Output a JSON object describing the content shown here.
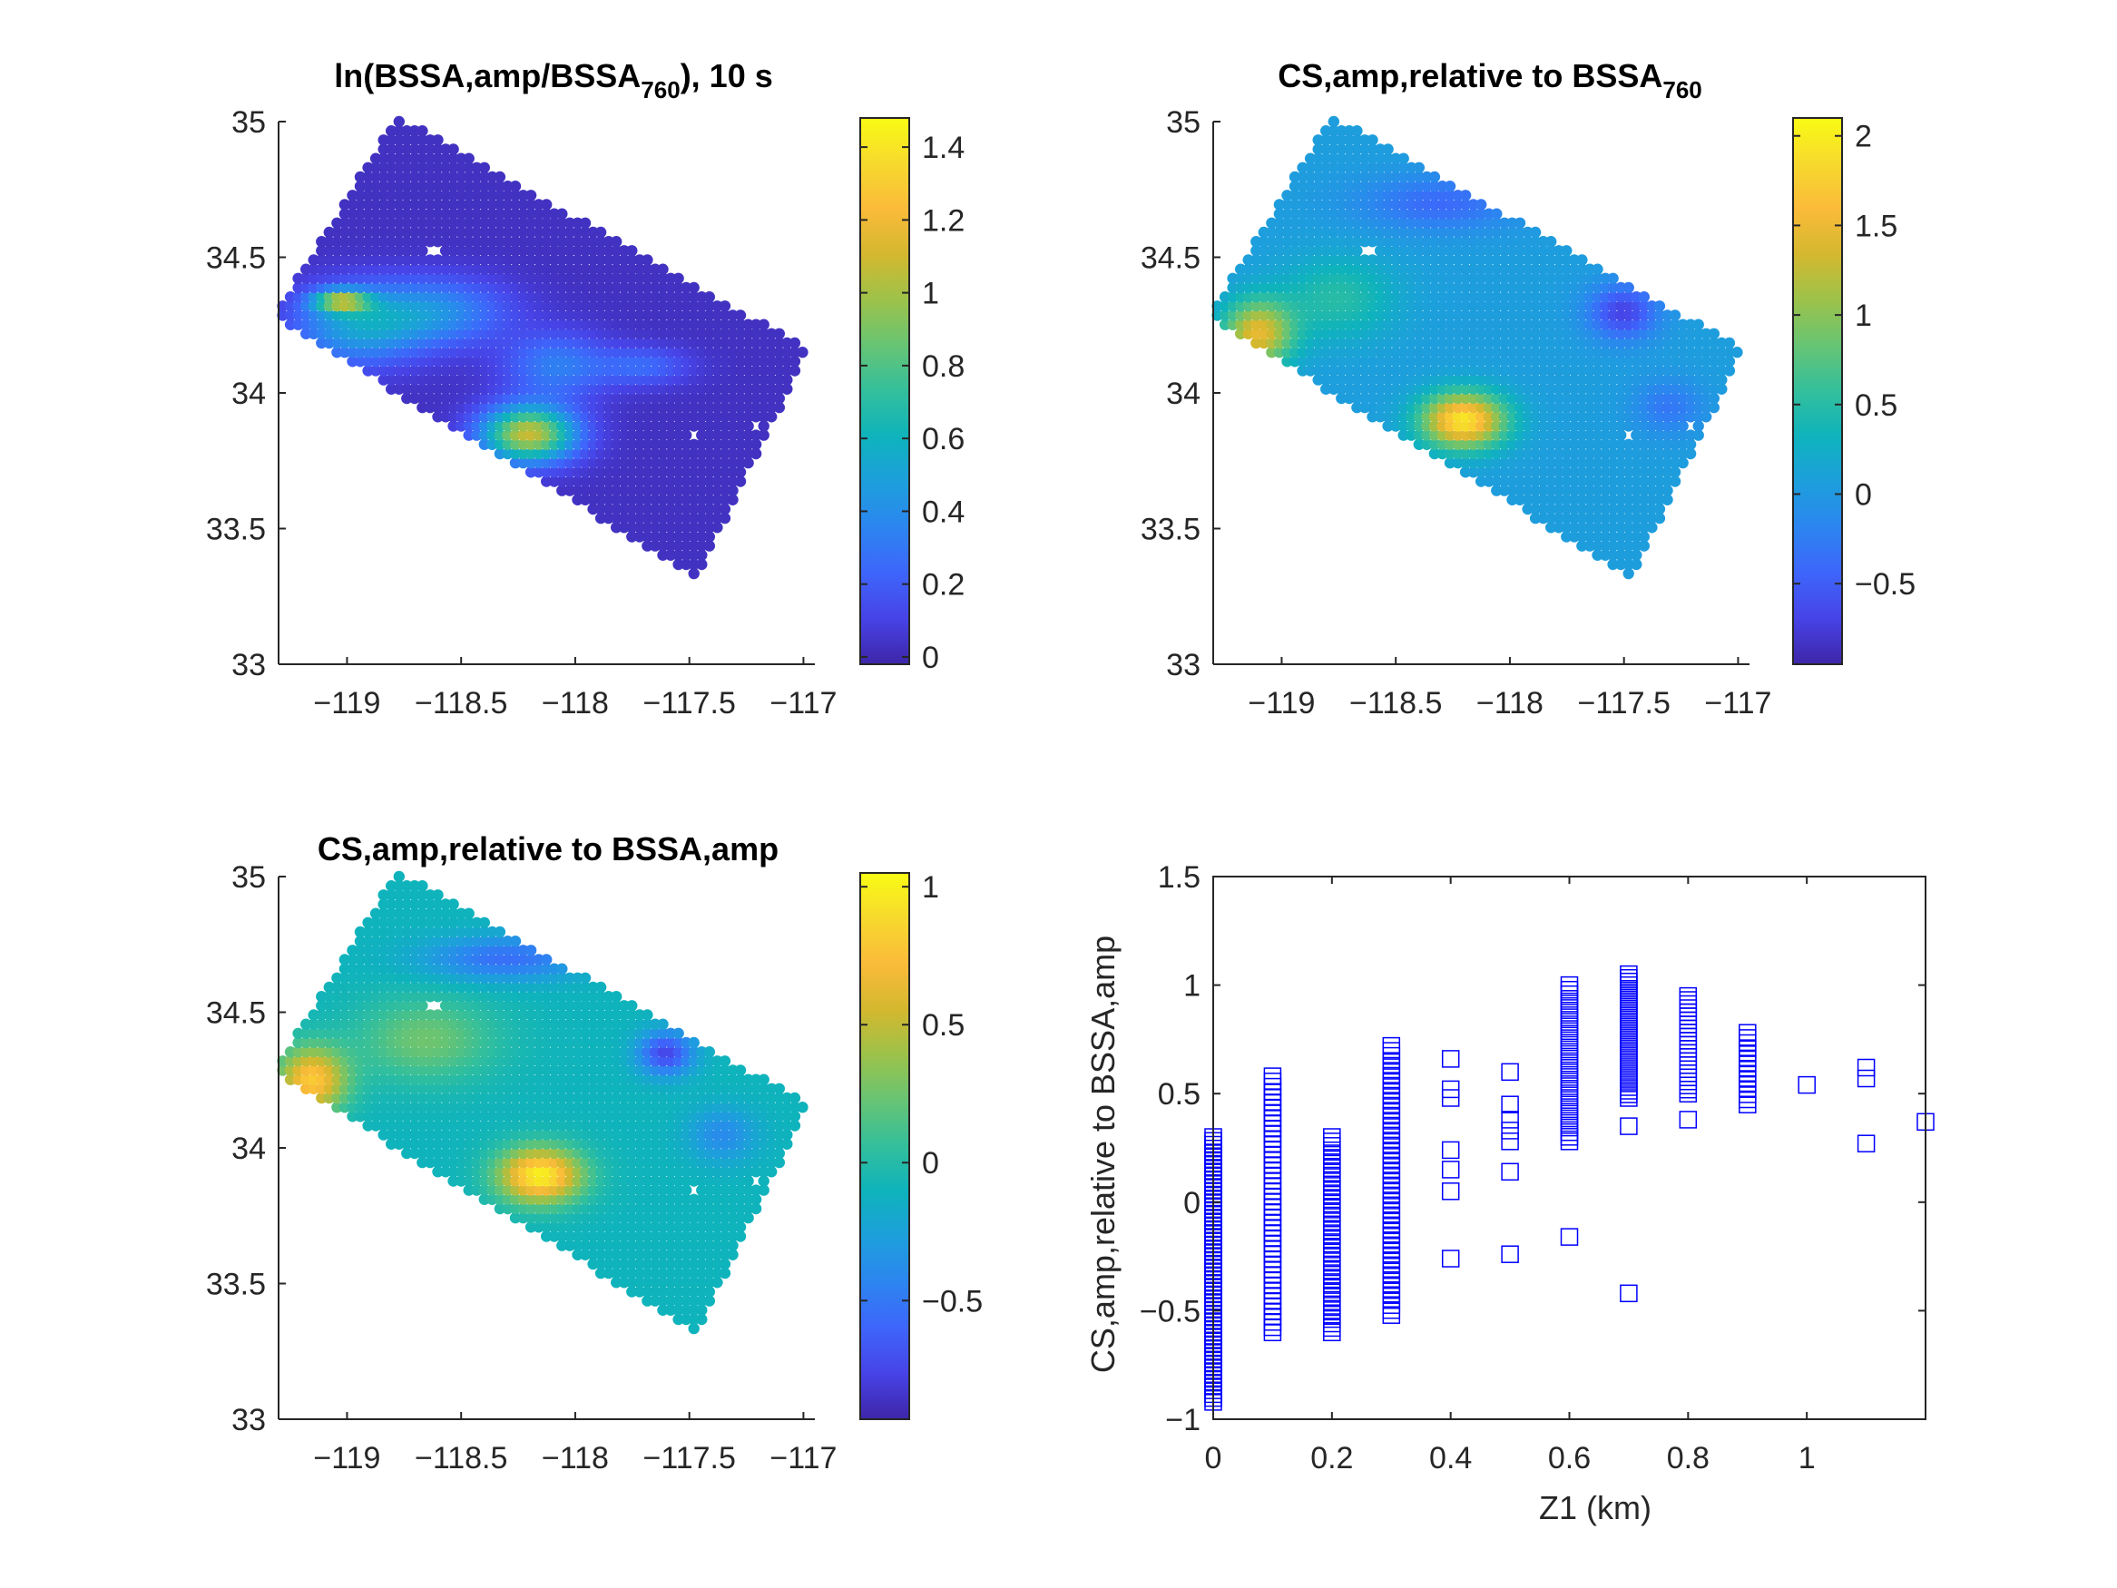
{
  "colormap": [
    "#3e26a8",
    "#4743e7",
    "#3e65fb",
    "#2c85f0",
    "#1d9fdc",
    "#0eb3bc",
    "#33bf9c",
    "#67c474",
    "#9cc24a",
    "#d4b82e",
    "#fabb3a",
    "#f7d92d",
    "#f9fb15"
  ],
  "region": {
    "corners": [
      [
        -118.78,
        35.02
      ],
      [
        -116.98,
        34.16
      ],
      [
        -117.47,
        33.32
      ],
      [
        -119.32,
        34.28
      ]
    ],
    "holes": [
      [
        -118.62,
        34.53
      ],
      [
        -117.48,
        33.85
      ],
      [
        -117.22,
        33.88
      ]
    ]
  },
  "chart_data": [
    {
      "type": "heatmap",
      "title": "ln(BSSA,amp/BSSA",
      "title_sub": "760",
      "title_post": "), 10 s",
      "xlabel": "",
      "ylabel": "",
      "xlim": [
        -119.3,
        -116.95
      ],
      "ylim": [
        33,
        35
      ],
      "xticks": [
        -119,
        -118.5,
        -118,
        -117.5,
        -117
      ],
      "yticks": [
        33,
        33.5,
        34,
        34.5,
        35
      ],
      "clim": [
        -0.02,
        1.48
      ],
      "cticks": [
        0,
        0.2,
        0.4,
        0.6,
        0.8,
        1,
        1.2,
        1.4
      ],
      "base": 0.03,
      "blobs": [
        {
          "x": -118.95,
          "y": 34.25,
          "sx": 0.28,
          "sy": 0.14,
          "a": 0.45
        },
        {
          "x": -118.6,
          "y": 34.3,
          "sx": 0.3,
          "sy": 0.12,
          "a": 0.35
        },
        {
          "x": -118.2,
          "y": 33.85,
          "sx": 0.2,
          "sy": 0.1,
          "a": 1.05
        },
        {
          "x": -118.08,
          "y": 34.1,
          "sx": 0.22,
          "sy": 0.12,
          "a": 0.3
        },
        {
          "x": -117.7,
          "y": 34.1,
          "sx": 0.2,
          "sy": 0.07,
          "a": 0.22
        },
        {
          "x": -119.02,
          "y": 34.34,
          "sx": 0.12,
          "sy": 0.04,
          "a": 0.8
        }
      ]
    },
    {
      "type": "heatmap",
      "title": "CS,amp,relative to BSSA",
      "title_sub": "760",
      "title_post": "",
      "xlabel": "",
      "ylabel": "",
      "xlim": [
        -119.3,
        -116.95
      ],
      "ylim": [
        33,
        35
      ],
      "xticks": [
        -119,
        -118.5,
        -118,
        -117.5,
        -117
      ],
      "yticks": [
        33,
        33.5,
        34,
        34.5,
        35
      ],
      "clim": [
        -0.95,
        2.1
      ],
      "cticks": [
        -0.5,
        0,
        0.5,
        1,
        1.5,
        2
      ],
      "base": 0.05,
      "blobs": [
        {
          "x": -119.1,
          "y": 34.22,
          "sx": 0.15,
          "sy": 0.12,
          "a": 1.4
        },
        {
          "x": -118.2,
          "y": 33.9,
          "sx": 0.18,
          "sy": 0.1,
          "a": 1.9
        },
        {
          "x": -118.75,
          "y": 34.35,
          "sx": 0.25,
          "sy": 0.15,
          "a": 0.45
        },
        {
          "x": -118.3,
          "y": 34.7,
          "sx": 0.35,
          "sy": 0.1,
          "a": -0.45
        },
        {
          "x": -117.5,
          "y": 34.3,
          "sx": 0.15,
          "sy": 0.1,
          "a": -0.75
        },
        {
          "x": -117.3,
          "y": 33.95,
          "sx": 0.15,
          "sy": 0.1,
          "a": -0.35
        }
      ]
    },
    {
      "type": "heatmap",
      "title": "CS,amp,relative to BSSA,amp",
      "title_sub": "",
      "title_post": "",
      "xlabel": "",
      "ylabel": "",
      "xlim": [
        -119.3,
        -116.95
      ],
      "ylim": [
        33,
        35
      ],
      "xticks": [
        -119,
        -118.5,
        -118,
        -117.5,
        -117
      ],
      "yticks": [
        33,
        33.5,
        34,
        34.5,
        35
      ],
      "clim": [
        -0.93,
        1.05
      ],
      "cticks": [
        -0.5,
        0,
        0.5,
        1
      ],
      "base": -0.1,
      "blobs": [
        {
          "x": -119.15,
          "y": 34.25,
          "sx": 0.15,
          "sy": 0.12,
          "a": 0.9
        },
        {
          "x": -118.15,
          "y": 33.9,
          "sx": 0.18,
          "sy": 0.1,
          "a": 1.1
        },
        {
          "x": -118.65,
          "y": 34.4,
          "sx": 0.3,
          "sy": 0.15,
          "a": 0.35
        },
        {
          "x": -118.3,
          "y": 34.7,
          "sx": 0.35,
          "sy": 0.08,
          "a": -0.45
        },
        {
          "x": -117.6,
          "y": 34.35,
          "sx": 0.12,
          "sy": 0.08,
          "a": -0.65
        },
        {
          "x": -117.35,
          "y": 34.05,
          "sx": 0.15,
          "sy": 0.1,
          "a": -0.3
        }
      ]
    },
    {
      "type": "scatter",
      "title": "",
      "xlabel": "Z1 (km)",
      "ylabel": "CS,amp,relative to BSSA,amp",
      "xlim": [
        0,
        1.2
      ],
      "ylim": [
        -1,
        1.5
      ],
      "xticks": [
        0,
        0.2,
        0.4,
        0.6,
        0.8,
        1
      ],
      "yticks": [
        -1,
        -0.5,
        0,
        0.5,
        1,
        1.5
      ],
      "marker": "square",
      "color": "#0000ff",
      "columns": [
        {
          "x": 0,
          "min": -0.92,
          "max": 0.3,
          "n": 70
        },
        {
          "x": 0.1,
          "min": -0.6,
          "max": 0.58,
          "n": 50
        },
        {
          "x": 0.2,
          "min": -0.6,
          "max": 0.3,
          "n": 45
        },
        {
          "x": 0.3,
          "min": -0.52,
          "max": 0.72,
          "n": 55
        },
        {
          "x": 0.6,
          "min": 0.28,
          "max": 1.0,
          "n": 35
        },
        {
          "x": 0.7,
          "min": 0.48,
          "max": 1.05,
          "n": 35
        },
        {
          "x": 0.8,
          "min": 0.5,
          "max": 0.95,
          "n": 25
        },
        {
          "x": 0.9,
          "min": 0.45,
          "max": 0.78,
          "n": 15
        }
      ],
      "points": [
        [
          0.4,
          0.66
        ],
        [
          0.4,
          0.52
        ],
        [
          0.4,
          0.48
        ],
        [
          0.4,
          0.24
        ],
        [
          0.4,
          0.15
        ],
        [
          0.4,
          0.05
        ],
        [
          0.4,
          -0.26
        ],
        [
          0.5,
          0.6
        ],
        [
          0.5,
          0.45
        ],
        [
          0.5,
          0.38
        ],
        [
          0.5,
          0.33
        ],
        [
          0.5,
          0.28
        ],
        [
          0.5,
          0.14
        ],
        [
          0.5,
          -0.24
        ],
        [
          0.6,
          -0.16
        ],
        [
          0.7,
          0.35
        ],
        [
          0.7,
          -0.42
        ],
        [
          0.8,
          0.38
        ],
        [
          1.0,
          0.54
        ],
        [
          1.1,
          0.62
        ],
        [
          1.1,
          0.57
        ],
        [
          1.1,
          0.27
        ],
        [
          1.2,
          0.37
        ]
      ]
    }
  ]
}
